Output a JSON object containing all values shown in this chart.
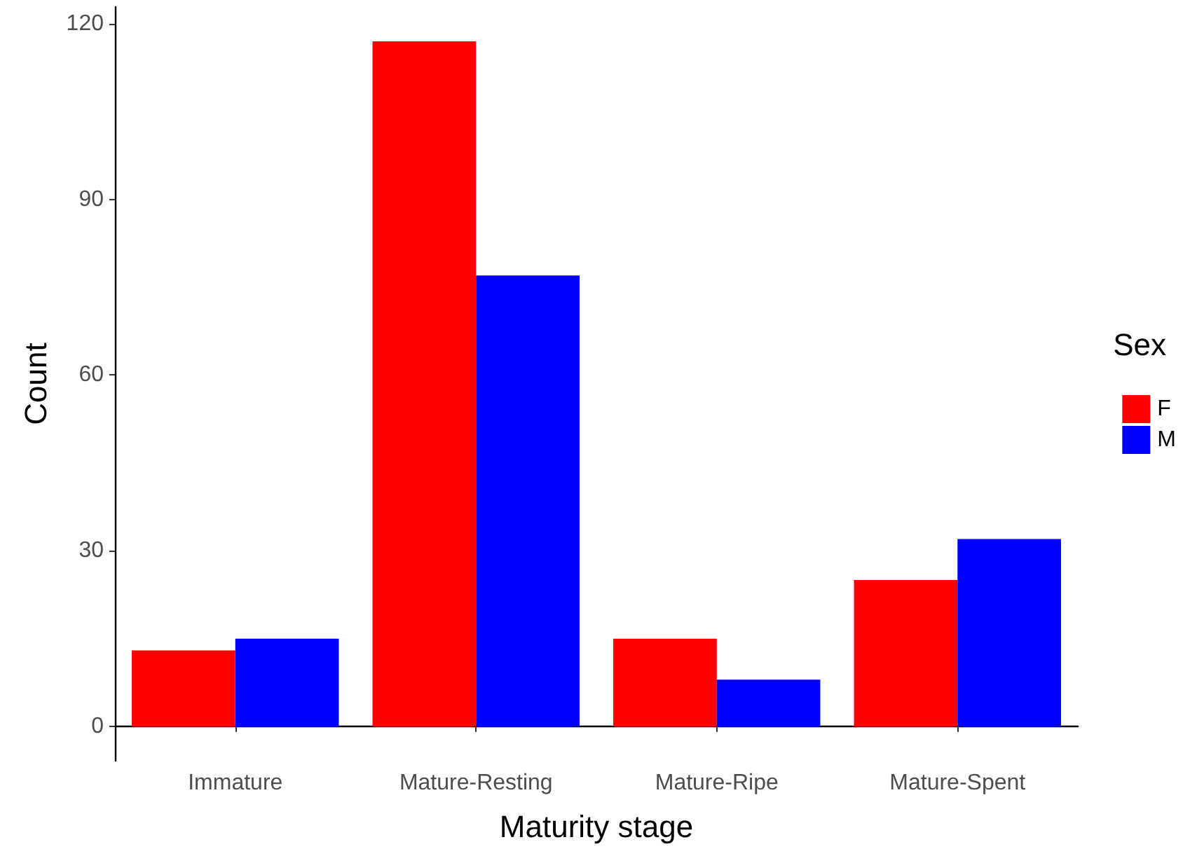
{
  "chart_data": {
    "type": "bar",
    "xlabel": "Maturity stage",
    "ylabel": "Count",
    "legend_title": "Sex",
    "categories": [
      "Immature",
      "Mature-Resting",
      "Mature-Ripe",
      "Mature-Spent"
    ],
    "series": [
      {
        "name": "F",
        "color": "#ff0000",
        "values": [
          13,
          117,
          15,
          25
        ]
      },
      {
        "name": "M",
        "color": "#0000ff",
        "values": [
          15,
          77,
          8,
          32
        ]
      }
    ],
    "ylim": [
      -5.85,
      122.85
    ],
    "yticks": [
      0,
      30,
      60,
      90,
      120
    ],
    "grid": false,
    "legend": "right"
  }
}
